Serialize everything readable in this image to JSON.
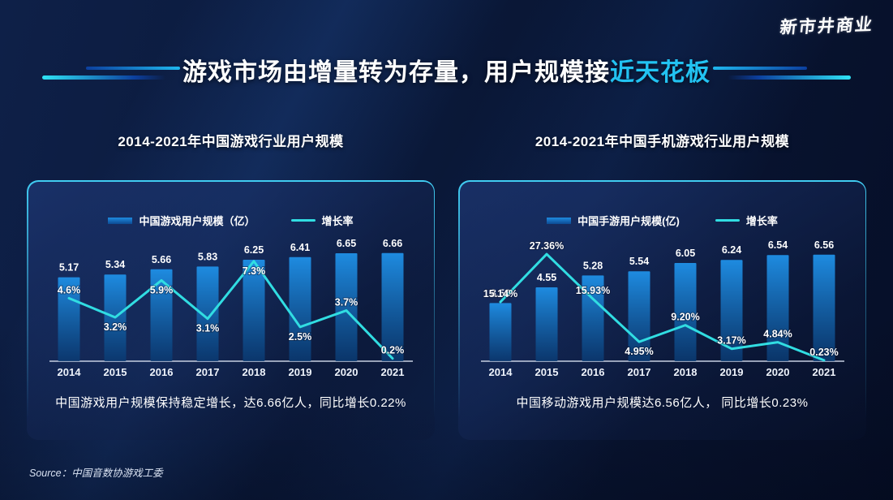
{
  "page": {
    "logo_text": "新市井商业",
    "title": {
      "white": "游戏市场由增量转为存量，用户规模接",
      "accent": "近天花板"
    },
    "source_label": "Source：中国音数协游戏工委"
  },
  "colors": {
    "background": "#0a1838",
    "panel_border": "#41cdf2",
    "title_accent": "#22c3f2",
    "bar_top": "#1e8be0",
    "bar_bottom": "#0a3a72",
    "line": "#31dde2",
    "axis": "#c6cfe2"
  },
  "chart_data": [
    {
      "type": "bar+line",
      "title": "2014-2021年中国游戏行业用户规模",
      "categories": [
        "2014",
        "2015",
        "2016",
        "2017",
        "2018",
        "2019",
        "2020",
        "2021"
      ],
      "series": [
        {
          "name": "中国游戏用户规模（亿）",
          "type": "bar",
          "values": [
            5.17,
            5.34,
            5.66,
            5.83,
            6.25,
            6.41,
            6.65,
            6.66
          ],
          "labels": [
            "5.17",
            "5.34",
            "5.66",
            "5.83",
            "6.25",
            "6.41",
            "6.65",
            "6.66"
          ]
        },
        {
          "name": "增长率",
          "type": "line",
          "unit": "%",
          "values": [
            4.6,
            3.2,
            5.9,
            3.1,
            7.3,
            2.5,
            3.7,
            0.2
          ],
          "labels": [
            "4.6%",
            "3.2%",
            "5.9%",
            "3.1%",
            "7.3%",
            "2.5%",
            "3.7%",
            "0.2%"
          ]
        }
      ],
      "ylim_bar": [
        0,
        6.75
      ],
      "ylim_line": [
        0,
        8
      ],
      "label_pos": [
        "above",
        "below",
        "below",
        "below",
        "below",
        "below",
        "above",
        "above"
      ],
      "legend_position": "top",
      "grid": false,
      "caption": "中国游戏用户规模保持稳定增长，达6.66亿人，同比增长0.22%"
    },
    {
      "type": "bar+line",
      "title": "2014-2021年中国手机游戏行业用户规模",
      "categories": [
        "2014",
        "2015",
        "2016",
        "2017",
        "2018",
        "2019",
        "2020",
        "2021"
      ],
      "series": [
        {
          "name": "中国手游用户规模(亿)",
          "type": "bar",
          "values": [
            3.58,
            4.55,
            5.28,
            5.54,
            6.05,
            6.24,
            6.54,
            6.56
          ],
          "labels": [
            "3.58",
            "4.55",
            "5.28",
            "5.54",
            "6.05",
            "6.24",
            "6.54",
            "6.56"
          ]
        },
        {
          "name": "增长率",
          "type": "line",
          "unit": "%",
          "values": [
            15.14,
            27.36,
            15.93,
            4.95,
            9.2,
            3.17,
            4.84,
            0.23
          ],
          "labels": [
            "15.14%",
            "27.36%",
            "15.93%",
            "4.95%",
            "9.20%",
            "3.17%",
            "4.84%",
            "0.23%"
          ]
        }
      ],
      "ylim_bar": [
        0,
        6.75
      ],
      "ylim_line": [
        0,
        28
      ],
      "label_pos": [
        "above",
        "above",
        "above",
        "below",
        "above",
        "above",
        "above",
        "above"
      ],
      "legend_position": "top",
      "grid": false,
      "caption": "中国移动游戏用户规模达6.56亿人， 同比增长0.23%"
    }
  ]
}
